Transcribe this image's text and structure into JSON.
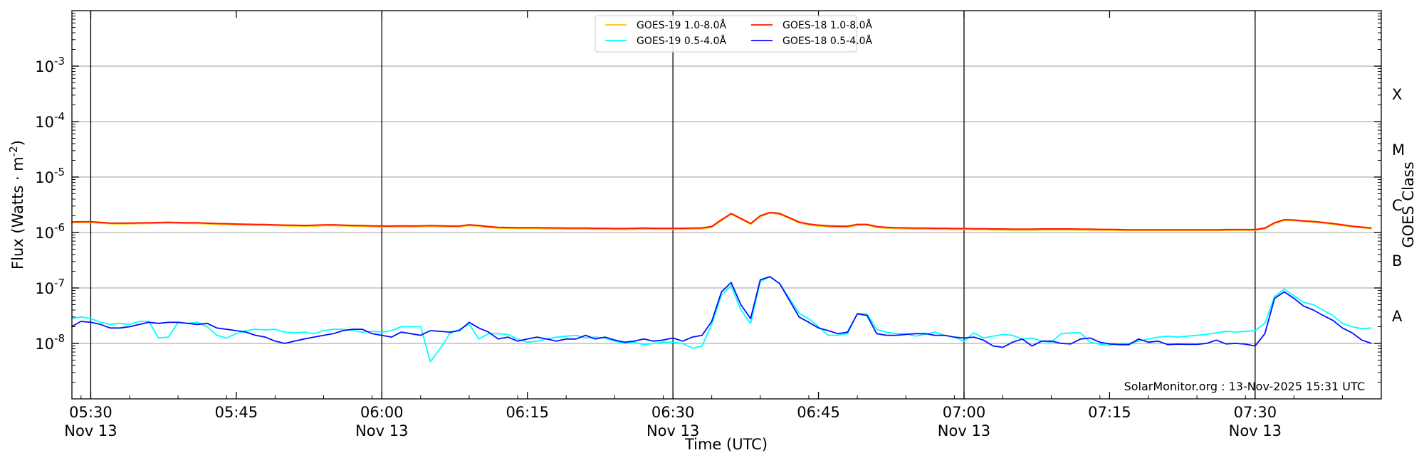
{
  "chart_data": {
    "type": "line",
    "title": "",
    "xlabel": "Time (UTC)",
    "ylabel": "Flux (Watts · m",
    "ylabel_sup": "-2",
    "ylabel_close": ")",
    "right_label": "GOES Class",
    "yscale": "log",
    "ylim": [
      1e-09,
      0.01
    ],
    "xlim": [
      "05:28",
      "07:43"
    ],
    "y_ticks": [
      {
        "base": "10",
        "exp": "-3",
        "value": 0.001
      },
      {
        "base": "10",
        "exp": "-4",
        "value": 0.0001
      },
      {
        "base": "10",
        "exp": "-5",
        "value": 1e-05
      },
      {
        "base": "10",
        "exp": "-6",
        "value": 1e-06
      },
      {
        "base": "10",
        "exp": "-7",
        "value": 1e-07
      },
      {
        "base": "10",
        "exp": "-8",
        "value": 1e-08
      }
    ],
    "x_ticks": [
      {
        "time": "05:30",
        "label": "05:30",
        "sub": "Nov 13"
      },
      {
        "time": "05:45",
        "label": "05:45",
        "sub": ""
      },
      {
        "time": "06:00",
        "label": "06:00",
        "sub": "Nov 13"
      },
      {
        "time": "06:15",
        "label": "06:15",
        "sub": ""
      },
      {
        "time": "06:30",
        "label": "06:30",
        "sub": "Nov 13"
      },
      {
        "time": "06:45",
        "label": "06:45",
        "sub": ""
      },
      {
        "time": "07:00",
        "label": "07:00",
        "sub": "Nov 13"
      },
      {
        "time": "07:15",
        "label": "07:15",
        "sub": ""
      },
      {
        "time": "07:30",
        "label": "07:30",
        "sub": "Nov 13"
      }
    ],
    "class_labels": [
      {
        "label": "X",
        "value": 0.000316
      },
      {
        "label": "M",
        "value": 3.16e-05
      },
      {
        "label": "C",
        "value": 3.16e-06
      },
      {
        "label": "B",
        "value": 3.16e-07
      },
      {
        "label": "A",
        "value": 3.16e-08
      }
    ],
    "grid": true,
    "legend_position": "top-center",
    "annotation": "SolarMonitor.org : 13-Nov-2025 15:31 UTC",
    "series_start": "05:28",
    "series_step_min": 1,
    "series": [
      {
        "name": "GOES-19 1.0-8.0Å",
        "color": "#ffc400",
        "values": [
          1.51e-06,
          1.52e-06,
          1.52e-06,
          1.48e-06,
          1.44e-06,
          1.43e-06,
          1.44e-06,
          1.45e-06,
          1.46e-06,
          1.47e-06,
          1.49e-06,
          1.47e-06,
          1.46e-06,
          1.46e-06,
          1.43e-06,
          1.41e-06,
          1.4e-06,
          1.38e-06,
          1.37e-06,
          1.36e-06,
          1.35e-06,
          1.33e-06,
          1.32e-06,
          1.31e-06,
          1.3e-06,
          1.31e-06,
          1.33e-06,
          1.34e-06,
          1.32e-06,
          1.3e-06,
          1.29e-06,
          1.28e-06,
          1.27e-06,
          1.27e-06,
          1.28e-06,
          1.27e-06,
          1.28e-06,
          1.29e-06,
          1.28e-06,
          1.27e-06,
          1.27e-06,
          1.34e-06,
          1.3e-06,
          1.24e-06,
          1.2e-06,
          1.19e-06,
          1.18e-06,
          1.18e-06,
          1.18e-06,
          1.17e-06,
          1.17e-06,
          1.16e-06,
          1.16e-06,
          1.16e-06,
          1.15e-06,
          1.15e-06,
          1.14e-06,
          1.14e-06,
          1.15e-06,
          1.16e-06,
          1.15e-06,
          1.15e-06,
          1.15e-06,
          1.15e-06,
          1.16e-06,
          1.17e-06,
          1.24e-06,
          1.65e-06,
          2.15e-06,
          1.75e-06,
          1.41e-06,
          1.95e-06,
          2.25e-06,
          2.15e-06,
          1.8e-06,
          1.5e-06,
          1.37e-06,
          1.31e-06,
          1.27e-06,
          1.25e-06,
          1.25e-06,
          1.36e-06,
          1.36e-06,
          1.24e-06,
          1.2e-06,
          1.18e-06,
          1.17e-06,
          1.16e-06,
          1.16e-06,
          1.15e-06,
          1.15e-06,
          1.14e-06,
          1.14e-06,
          1.13e-06,
          1.13e-06,
          1.12e-06,
          1.12e-06,
          1.11e-06,
          1.11e-06,
          1.11e-06,
          1.12e-06,
          1.12e-06,
          1.12e-06,
          1.12e-06,
          1.11e-06,
          1.11e-06,
          1.1e-06,
          1.1e-06,
          1.09e-06,
          1.09e-06,
          1.09e-06,
          1.09e-06,
          1.09e-06,
          1.09e-06,
          1.09e-06,
          1.09e-06,
          1.09e-06,
          1.09e-06,
          1.09e-06,
          1.1e-06,
          1.1e-06,
          1.1e-06,
          1.1e-06,
          1.17e-06,
          1.46e-06,
          1.66e-06,
          1.64e-06,
          1.58e-06,
          1.54e-06,
          1.48e-06,
          1.41e-06,
          1.34e-06,
          1.27e-06,
          1.22e-06,
          1.17e-06
        ]
      },
      {
        "name": "GOES-18 1.0-8.0Å",
        "color": "#ff1a00",
        "values": [
          1.55e-06,
          1.56e-06,
          1.56e-06,
          1.52e-06,
          1.48e-06,
          1.47e-06,
          1.48e-06,
          1.49e-06,
          1.5e-06,
          1.51e-06,
          1.53e-06,
          1.51e-06,
          1.5e-06,
          1.5e-06,
          1.47e-06,
          1.45e-06,
          1.44e-06,
          1.42e-06,
          1.41e-06,
          1.4e-06,
          1.39e-06,
          1.37e-06,
          1.36e-06,
          1.35e-06,
          1.34e-06,
          1.35e-06,
          1.37e-06,
          1.38e-06,
          1.36e-06,
          1.34e-06,
          1.33e-06,
          1.32e-06,
          1.31e-06,
          1.31e-06,
          1.32e-06,
          1.31e-06,
          1.32e-06,
          1.33e-06,
          1.32e-06,
          1.31e-06,
          1.31e-06,
          1.38e-06,
          1.34e-06,
          1.28e-06,
          1.24e-06,
          1.23e-06,
          1.22e-06,
          1.22e-06,
          1.22e-06,
          1.21e-06,
          1.21e-06,
          1.2e-06,
          1.2e-06,
          1.2e-06,
          1.19e-06,
          1.19e-06,
          1.18e-06,
          1.18e-06,
          1.19e-06,
          1.2e-06,
          1.19e-06,
          1.19e-06,
          1.19e-06,
          1.19e-06,
          1.2e-06,
          1.21e-06,
          1.28e-06,
          1.7e-06,
          2.2e-06,
          1.8e-06,
          1.45e-06,
          2e-06,
          2.3e-06,
          2.2e-06,
          1.85e-06,
          1.55e-06,
          1.42e-06,
          1.36e-06,
          1.32e-06,
          1.3e-06,
          1.3e-06,
          1.4e-06,
          1.4e-06,
          1.28e-06,
          1.24e-06,
          1.22e-06,
          1.21e-06,
          1.2e-06,
          1.2e-06,
          1.19e-06,
          1.19e-06,
          1.18e-06,
          1.18e-06,
          1.17e-06,
          1.17e-06,
          1.16e-06,
          1.16e-06,
          1.15e-06,
          1.15e-06,
          1.15e-06,
          1.16e-06,
          1.16e-06,
          1.16e-06,
          1.16e-06,
          1.15e-06,
          1.15e-06,
          1.14e-06,
          1.14e-06,
          1.13e-06,
          1.12e-06,
          1.12e-06,
          1.12e-06,
          1.12e-06,
          1.12e-06,
          1.12e-06,
          1.12e-06,
          1.12e-06,
          1.12e-06,
          1.12e-06,
          1.13e-06,
          1.13e-06,
          1.13e-06,
          1.13e-06,
          1.2e-06,
          1.5e-06,
          1.7e-06,
          1.68e-06,
          1.62e-06,
          1.58e-06,
          1.52e-06,
          1.45e-06,
          1.38e-06,
          1.3e-06,
          1.25e-06,
          1.2e-06
        ]
      },
      {
        "name": "GOES-19 0.5-4.0Å",
        "color": "#00ffff",
        "values": [
          2.8e-08,
          3e-08,
          2.8e-08,
          2.4e-08,
          2.2e-08,
          2.3e-08,
          2.2e-08,
          2.5e-08,
          2.5e-08,
          1.25e-08,
          1.3e-08,
          2.4e-08,
          2.3e-08,
          2.4e-08,
          2e-08,
          1.4e-08,
          1.25e-08,
          1.5e-08,
          1.7e-08,
          1.8e-08,
          1.75e-08,
          1.8e-08,
          1.6e-08,
          1.55e-08,
          1.6e-08,
          1.5e-08,
          1.7e-08,
          1.8e-08,
          1.8e-08,
          1.7e-08,
          1.6e-08,
          1.65e-08,
          1.6e-08,
          1.7e-08,
          2e-08,
          2e-08,
          2e-08,
          4.7e-09,
          8e-09,
          1.5e-08,
          1.8e-08,
          2.2e-08,
          1.2e-08,
          1.5e-08,
          1.5e-08,
          1.45e-08,
          1.2e-08,
          1.05e-08,
          1.1e-08,
          1.2e-08,
          1.3e-08,
          1.35e-08,
          1.4e-08,
          1.25e-08,
          1.3e-08,
          1.25e-08,
          1.1e-08,
          1e-08,
          1.05e-08,
          9.5e-09,
          1e-08,
          1.05e-08,
          1.05e-08,
          1e-08,
          8.2e-09,
          9e-09,
          2.2e-08,
          7.5e-08,
          1.1e-07,
          4e-08,
          2.3e-08,
          1.3e-07,
          1.6e-07,
          1.2e-07,
          6.5e-08,
          3.5e-08,
          2.8e-08,
          2e-08,
          1.4e-08,
          1.4e-08,
          1.5e-08,
          3.5e-08,
          3.4e-08,
          1.8e-08,
          1.6e-08,
          1.5e-08,
          1.5e-08,
          1.35e-08,
          1.45e-08,
          1.6e-08,
          1.4e-08,
          1.3e-08,
          1.1e-08,
          1.55e-08,
          1.25e-08,
          1.35e-08,
          1.45e-08,
          1.4e-08,
          1.2e-08,
          1.25e-08,
          1.1e-08,
          1.05e-08,
          1.5e-08,
          1.55e-08,
          1.55e-08,
          1.05e-08,
          9.7e-09,
          9.2e-09,
          1e-08,
          1e-08,
          1.1e-08,
          1.2e-08,
          1.3e-08,
          1.35e-08,
          1.3e-08,
          1.35e-08,
          1.4e-08,
          1.45e-08,
          1.55e-08,
          1.65e-08,
          1.6e-08,
          1.65e-08,
          1.7e-08,
          2.3e-08,
          7e-08,
          9.5e-08,
          7.2e-08,
          5.5e-08,
          5e-08,
          4e-08,
          3.2e-08,
          2.3e-08,
          2e-08,
          1.85e-08,
          1.9e-08
        ]
      },
      {
        "name": "GOES-18 0.5-4.0Å",
        "color": "#0010ff",
        "values": [
          2e-08,
          2.5e-08,
          2.4e-08,
          2.2e-08,
          1.9e-08,
          1.9e-08,
          2e-08,
          2.2e-08,
          2.4e-08,
          2.3e-08,
          2.4e-08,
          2.4e-08,
          2.3e-08,
          2.2e-08,
          2.3e-08,
          1.9e-08,
          1.8e-08,
          1.7e-08,
          1.6e-08,
          1.4e-08,
          1.3e-08,
          1.1e-08,
          1e-08,
          1.1e-08,
          1.2e-08,
          1.3e-08,
          1.4e-08,
          1.5e-08,
          1.7e-08,
          1.8e-08,
          1.8e-08,
          1.5e-08,
          1.4e-08,
          1.3e-08,
          1.6e-08,
          1.5e-08,
          1.4e-08,
          1.7e-08,
          1.65e-08,
          1.6e-08,
          1.7e-08,
          2.4e-08,
          1.9e-08,
          1.6e-08,
          1.2e-08,
          1.3e-08,
          1.1e-08,
          1.2e-08,
          1.3e-08,
          1.2e-08,
          1.1e-08,
          1.2e-08,
          1.2e-08,
          1.4e-08,
          1.2e-08,
          1.3e-08,
          1.15e-08,
          1.05e-08,
          1.1e-08,
          1.2e-08,
          1.1e-08,
          1.15e-08,
          1.25e-08,
          1.1e-08,
          1.3e-08,
          1.4e-08,
          2.5e-08,
          8.5e-08,
          1.25e-07,
          5e-08,
          2.8e-08,
          1.4e-07,
          1.6e-07,
          1.2e-07,
          6e-08,
          3e-08,
          2.4e-08,
          1.9e-08,
          1.7e-08,
          1.5e-08,
          1.6e-08,
          3.4e-08,
          3.2e-08,
          1.5e-08,
          1.4e-08,
          1.4e-08,
          1.45e-08,
          1.5e-08,
          1.5e-08,
          1.4e-08,
          1.4e-08,
          1.3e-08,
          1.25e-08,
          1.3e-08,
          1.15e-08,
          9e-09,
          8.5e-09,
          1.05e-08,
          1.2e-08,
          9e-09,
          1.1e-08,
          1.1e-08,
          1e-08,
          9.8e-09,
          1.2e-08,
          1.25e-08,
          1.05e-08,
          9.8e-09,
          9.5e-09,
          9.5e-09,
          1.2e-08,
          1.05e-08,
          1.1e-08,
          9.5e-09,
          9.7e-09,
          9.6e-09,
          9.6e-09,
          1e-08,
          1.15e-08,
          9.8e-09,
          1e-08,
          9.7e-09,
          9e-09,
          1.5e-08,
          6.5e-08,
          8.5e-08,
          6.5e-08,
          4.7e-08,
          4e-08,
          3.2e-08,
          2.6e-08,
          1.9e-08,
          1.55e-08,
          1.15e-08,
          1e-08
        ]
      }
    ]
  }
}
